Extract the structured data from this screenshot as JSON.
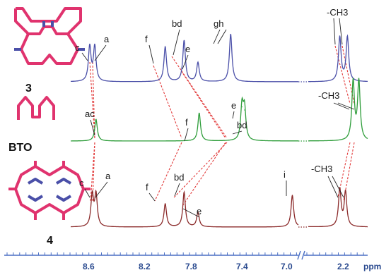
{
  "chart_data": {
    "type": "line",
    "x_unit": "ppm",
    "x_ticks": [
      "8.6",
      "8.2",
      "7.8",
      "7.4",
      "7.0",
      "2.2"
    ],
    "axis_break_between": [
      "7.0",
      "2.2"
    ],
    "colors": {
      "s3": "#4a4fa8",
      "bto": "#2e9d3a",
      "s4": "#8b2a2a",
      "guide": "#e23a3a",
      "axis": "#4a6fc4",
      "mol_pink": "#e0336e",
      "mol_blue": "#4a4fa8"
    },
    "series": [
      {
        "name": "3",
        "peaks": [
          {
            "label": "c",
            "ppm": 8.64,
            "height": 0.55
          },
          {
            "label": "a",
            "ppm": 8.6,
            "height": 0.55
          },
          {
            "label": "f",
            "ppm": 8.04,
            "height": 0.55
          },
          {
            "label": "bd",
            "ppm": 7.89,
            "height": 0.65
          },
          {
            "label": "e",
            "ppm": 7.78,
            "height": 0.3
          },
          {
            "label": "gh",
            "ppm": 7.52,
            "height": 0.75
          },
          {
            "label": "-CH3",
            "ppm": 2.27,
            "height": 0.7
          },
          {
            "label": "-CH3",
            "ppm": 2.19,
            "height": 0.7
          }
        ]
      },
      {
        "name": "BTO",
        "peaks": [
          {
            "label": "ac",
            "ppm": 8.59,
            "height": 0.35
          },
          {
            "label": "f",
            "ppm": 7.77,
            "height": 0.45
          },
          {
            "label": "e",
            "ppm": 7.43,
            "height": 0.55
          },
          {
            "label": "bd",
            "ppm": 7.41,
            "height": 0.5
          },
          {
            "label": "-CH3",
            "ppm": 2.13,
            "height": 0.95
          },
          {
            "label": "-CH3",
            "ppm": 2.07,
            "height": 0.95
          }
        ]
      },
      {
        "name": "4",
        "peaks": [
          {
            "label": "c",
            "ppm": 8.62,
            "height": 0.55
          },
          {
            "label": "a",
            "ppm": 8.59,
            "height": 0.55
          },
          {
            "label": "f",
            "ppm": 8.04,
            "height": 0.4
          },
          {
            "label": "bd",
            "ppm": 7.89,
            "height": 0.6
          },
          {
            "label": "e",
            "ppm": 7.78,
            "height": 0.25
          },
          {
            "label": "i",
            "ppm": 7.03,
            "height": 0.55
          },
          {
            "label": "-CH3",
            "ppm": 2.27,
            "height": 0.65
          },
          {
            "label": "-CH3",
            "ppm": 2.21,
            "height": 0.6
          }
        ]
      }
    ],
    "peak_labels": {
      "s3": [
        "c",
        "a",
        "f",
        "bd",
        "e",
        "gh",
        "-CH3"
      ],
      "bto": [
        "ac",
        "f",
        "e",
        "bd",
        "-CH3"
      ],
      "s4": [
        "c",
        "a",
        "f",
        "bd",
        "e",
        "i",
        "-CH3"
      ]
    },
    "compound_labels": [
      "3",
      "BTO",
      "4"
    ]
  }
}
